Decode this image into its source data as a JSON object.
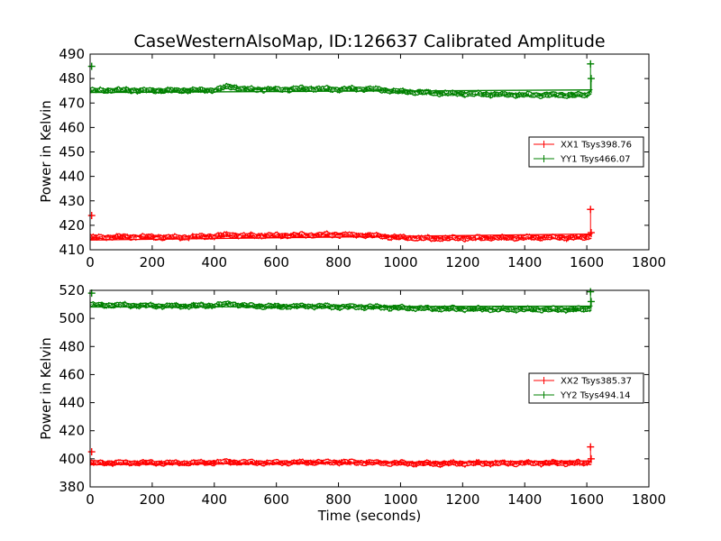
{
  "chart_data": [
    {
      "type": "line",
      "title": "CaseWesternAlsoMap, ID:126637 Calibrated Amplitude",
      "xlabel": "",
      "ylabel": "Power in Kelvin",
      "xlim": [
        0,
        1800
      ],
      "ylim": [
        410,
        490
      ],
      "xticks": [
        0,
        200,
        400,
        600,
        800,
        1000,
        1200,
        1400,
        1600,
        1800
      ],
      "yticks": [
        410,
        420,
        430,
        440,
        450,
        460,
        470,
        480,
        490
      ],
      "grid": false,
      "legend_position": "right",
      "series": [
        {
          "name": "XX1 Tsys398.76",
          "color": "#ff0000",
          "baseline": [
            [
              0,
              415
            ],
            [
              100,
              415.3
            ],
            [
              200,
              415.2
            ],
            [
              300,
              415.1
            ],
            [
              400,
              415.6
            ],
            [
              450,
              416.2
            ],
            [
              500,
              415.7
            ],
            [
              600,
              415.8
            ],
            [
              700,
              416
            ],
            [
              800,
              416.2
            ],
            [
              900,
              415.9
            ],
            [
              1000,
              415
            ],
            [
              1100,
              414.6
            ],
            [
              1200,
              414.8
            ],
            [
              1300,
              414.8
            ],
            [
              1400,
              415
            ],
            [
              1500,
              415
            ],
            [
              1600,
              415
            ],
            [
              1615,
              416
            ]
          ],
          "amplitude": 1.4,
          "spikes": [
            [
              5,
              424
            ],
            [
              1612,
              426.5
            ],
            [
              1614,
              417
            ]
          ]
        },
        {
          "name": "YY1 Tsys466.07",
          "color": "#008000",
          "baseline": [
            [
              0,
              475
            ],
            [
              100,
              475.3
            ],
            [
              200,
              475.1
            ],
            [
              300,
              475.2
            ],
            [
              400,
              475.3
            ],
            [
              450,
              476.8
            ],
            [
              500,
              475.6
            ],
            [
              600,
              475.5
            ],
            [
              700,
              475.9
            ],
            [
              800,
              475.6
            ],
            [
              900,
              475.8
            ],
            [
              1000,
              474.7
            ],
            [
              1100,
              474.2
            ],
            [
              1200,
              473.8
            ],
            [
              1300,
              473.5
            ],
            [
              1400,
              473.3
            ],
            [
              1500,
              473.3
            ],
            [
              1600,
              473.2
            ],
            [
              1615,
              475
            ]
          ],
          "amplitude": 1.4,
          "spikes": [
            [
              5,
              485
            ],
            [
              1612,
              486
            ],
            [
              1614,
              480
            ]
          ]
        }
      ]
    },
    {
      "type": "line",
      "title": "",
      "xlabel": "Time (seconds)",
      "ylabel": "Power in Kelvin",
      "xlim": [
        0,
        1800
      ],
      "ylim": [
        380,
        520
      ],
      "xticks": [
        0,
        200,
        400,
        600,
        800,
        1000,
        1200,
        1400,
        1600,
        1800
      ],
      "yticks": [
        380,
        400,
        420,
        440,
        460,
        480,
        500,
        520
      ],
      "grid": false,
      "legend_position": "right",
      "series": [
        {
          "name": "XX2 Tsys385.37",
          "color": "#ff0000",
          "baseline": [
            [
              0,
              397
            ],
            [
              100,
              397.2
            ],
            [
              200,
              397.1
            ],
            [
              300,
              397
            ],
            [
              400,
              397.4
            ],
            [
              450,
              397.8
            ],
            [
              500,
              397.3
            ],
            [
              600,
              397.2
            ],
            [
              700,
              397.5
            ],
            [
              800,
              397.6
            ],
            [
              900,
              397.3
            ],
            [
              1000,
              396.8
            ],
            [
              1100,
              396.6
            ],
            [
              1200,
              396.8
            ],
            [
              1300,
              396.8
            ],
            [
              1400,
              397
            ],
            [
              1500,
              397
            ],
            [
              1600,
              397
            ],
            [
              1615,
              398
            ]
          ],
          "amplitude": 2.4,
          "spikes": [
            [
              5,
              405
            ],
            [
              1612,
              408.5
            ],
            [
              1614,
              400
            ]
          ]
        },
        {
          "name": "YY2 Tsys494.14",
          "color": "#008000",
          "baseline": [
            [
              0,
              509.5
            ],
            [
              100,
              509.5
            ],
            [
              200,
              509
            ],
            [
              300,
              508.8
            ],
            [
              400,
              509.3
            ],
            [
              450,
              510.5
            ],
            [
              500,
              509
            ],
            [
              600,
              508.5
            ],
            [
              700,
              508.8
            ],
            [
              800,
              508.3
            ],
            [
              900,
              508.2
            ],
            [
              1000,
              507.5
            ],
            [
              1100,
              507
            ],
            [
              1200,
              506.8
            ],
            [
              1300,
              506.5
            ],
            [
              1400,
              506.5
            ],
            [
              1500,
              506.3
            ],
            [
              1600,
              506.5
            ],
            [
              1615,
              508
            ]
          ],
          "amplitude": 2.4,
          "spikes": [
            [
              5,
              518
            ],
            [
              1612,
              519
            ],
            [
              1614,
              512
            ]
          ]
        }
      ]
    }
  ]
}
